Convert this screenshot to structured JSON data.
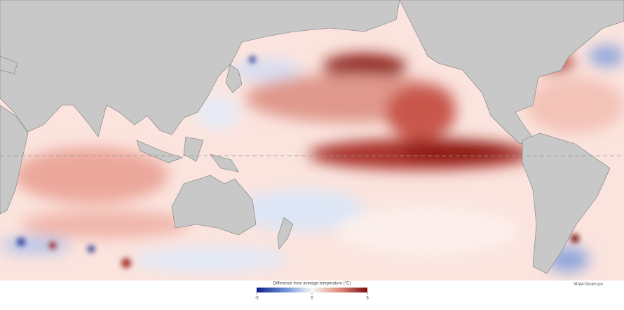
{
  "legend": {
    "title": "Difference from average temperature (°C)",
    "range": [
      -5,
      5
    ],
    "ticks": [
      -5,
      0,
      5
    ]
  },
  "credit": "NOAA Climate.gov"
}
